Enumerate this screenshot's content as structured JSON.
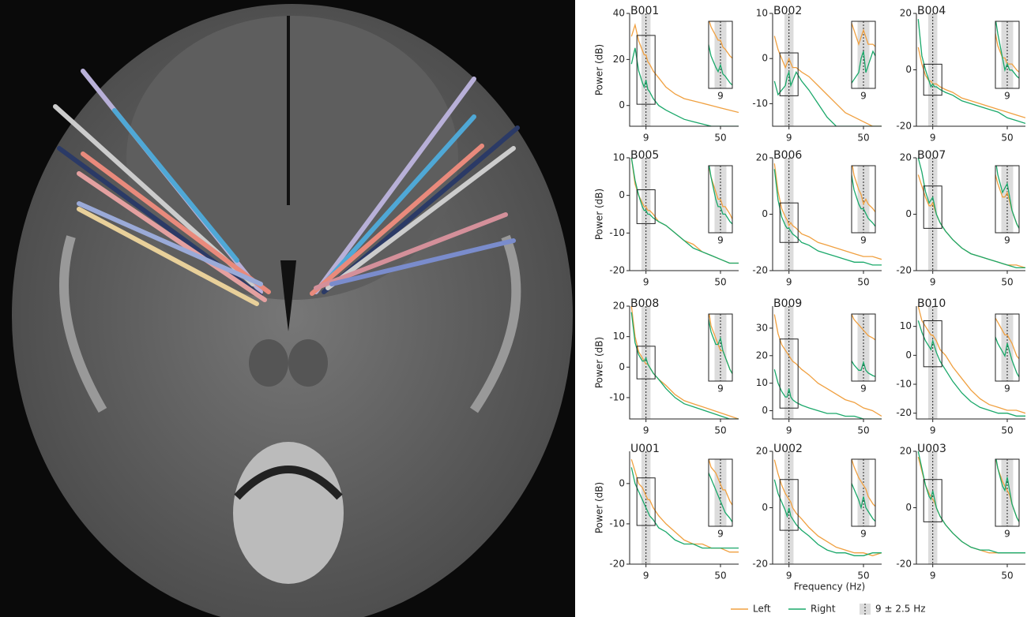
{
  "chart_data": [
    {
      "type": "line",
      "title": "B001",
      "ylabel": "Power (dB)",
      "x": [
        1,
        3,
        5,
        7,
        8,
        9,
        10,
        11,
        13,
        16,
        20,
        25,
        30,
        35,
        40,
        45,
        50,
        55,
        60
      ],
      "xlim": [
        0,
        60
      ],
      "xticks": [
        9,
        50
      ],
      "ylim": [
        -9,
        40
      ],
      "yticks": [
        0,
        20,
        40
      ],
      "series": [
        {
          "name": "Left",
          "color": "#f0a040",
          "values": [
            30,
            35,
            28,
            24,
            22,
            22,
            19,
            18,
            15,
            12,
            8,
            5,
            3,
            2,
            1,
            0,
            -1,
            -2,
            -3
          ]
        },
        {
          "name": "Right",
          "color": "#1aa86a",
          "values": [
            18,
            25,
            15,
            10,
            8,
            11,
            7,
            6,
            3,
            0,
            -2,
            -4,
            -6,
            -7,
            -8,
            -9,
            -9,
            -9,
            -9
          ]
        }
      ]
    },
    {
      "type": "line",
      "title": "B002",
      "x": [
        1,
        3,
        5,
        7,
        8,
        9,
        10,
        11,
        13,
        16,
        20,
        25,
        30,
        35,
        40,
        45,
        50,
        55,
        60
      ],
      "xlim": [
        0,
        60
      ],
      "xticks": [
        9,
        50
      ],
      "ylim": [
        -15,
        10
      ],
      "yticks": [
        -10,
        0,
        10
      ],
      "series": [
        {
          "name": "Left",
          "color": "#f0a040",
          "values": [
            5,
            2,
            0,
            -2,
            -1,
            0,
            -1,
            -2,
            -2,
            -3,
            -4,
            -6,
            -8,
            -10,
            -12,
            -13,
            -14,
            -15,
            -15
          ]
        },
        {
          "name": "Right",
          "color": "#1aa86a",
          "values": [
            -5,
            -8,
            -7,
            -6,
            -4,
            -3,
            -6,
            -5,
            -3,
            -5,
            -7,
            -10,
            -13,
            -15,
            -15,
            -15,
            -15,
            -15,
            -15
          ]
        }
      ]
    },
    {
      "type": "line",
      "title": "B004",
      "x": [
        1,
        3,
        5,
        7,
        8,
        9,
        10,
        11,
        13,
        16,
        20,
        25,
        30,
        35,
        40,
        45,
        50,
        55,
        60
      ],
      "xlim": [
        0,
        60
      ],
      "xticks": [
        9,
        50
      ],
      "ylim": [
        -20,
        20
      ],
      "yticks": [
        -20,
        0,
        20
      ],
      "series": [
        {
          "name": "Left",
          "color": "#f0a040",
          "values": [
            8,
            2,
            -2,
            -4,
            -4,
            -5,
            -5,
            -5,
            -6,
            -7,
            -8,
            -10,
            -11,
            -12,
            -13,
            -14,
            -15,
            -16,
            -17
          ]
        },
        {
          "name": "Right",
          "color": "#1aa86a",
          "values": [
            18,
            5,
            0,
            -4,
            -6,
            -5,
            -6,
            -6,
            -7,
            -8,
            -9,
            -11,
            -12,
            -13,
            -14,
            -15,
            -17,
            -18,
            -19
          ]
        }
      ]
    },
    {
      "type": "line",
      "title": "B005",
      "ylabel": "Power (dB)",
      "x": [
        1,
        3,
        5,
        7,
        8,
        9,
        10,
        11,
        13,
        16,
        20,
        25,
        30,
        35,
        40,
        45,
        50,
        55,
        60
      ],
      "xlim": [
        0,
        60
      ],
      "xticks": [
        9,
        50
      ],
      "ylim": [
        -20,
        10
      ],
      "yticks": [
        -20,
        -10,
        0,
        10
      ],
      "series": [
        {
          "name": "Left",
          "color": "#f0a040",
          "values": [
            10,
            3,
            0,
            -2,
            -3,
            -3,
            -4,
            -4,
            -5,
            -7,
            -8,
            -10,
            -12,
            -13,
            -15,
            -16,
            -17,
            -18,
            -18
          ]
        },
        {
          "name": "Right",
          "color": "#1aa86a",
          "values": [
            10,
            4,
            0,
            -3,
            -4,
            -4,
            -5,
            -5,
            -6,
            -7,
            -8,
            -10,
            -12,
            -14,
            -15,
            -16,
            -17,
            -18,
            -18
          ]
        }
      ]
    },
    {
      "type": "line",
      "title": "B006",
      "x": [
        1,
        3,
        5,
        7,
        8,
        9,
        10,
        11,
        13,
        16,
        20,
        25,
        30,
        35,
        40,
        45,
        50,
        55,
        60
      ],
      "xlim": [
        0,
        60
      ],
      "xticks": [
        9,
        50
      ],
      "ylim": [
        -20,
        20
      ],
      "yticks": [
        -20,
        0,
        20
      ],
      "series": [
        {
          "name": "Left",
          "color": "#f0a040",
          "values": [
            18,
            8,
            2,
            -1,
            -2,
            -4,
            -3,
            -4,
            -5,
            -7,
            -8,
            -10,
            -11,
            -12,
            -13,
            -14,
            -15,
            -15,
            -16
          ]
        },
        {
          "name": "Right",
          "color": "#1aa86a",
          "values": [
            16,
            5,
            -1,
            -4,
            -5,
            -5,
            -6,
            -7,
            -8,
            -10,
            -11,
            -13,
            -14,
            -15,
            -16,
            -17,
            -17,
            -18,
            -18
          ]
        }
      ]
    },
    {
      "type": "line",
      "title": "B007",
      "x": [
        1,
        3,
        5,
        7,
        8,
        9,
        10,
        11,
        13,
        16,
        20,
        25,
        30,
        35,
        40,
        45,
        50,
        55,
        60
      ],
      "xlim": [
        0,
        60
      ],
      "xticks": [
        9,
        50
      ],
      "ylim": [
        -20,
        20
      ],
      "yticks": [
        -20,
        0,
        20
      ],
      "series": [
        {
          "name": "Left",
          "color": "#f0a040",
          "values": [
            14,
            10,
            6,
            3,
            3,
            4,
            2,
            0,
            -3,
            -6,
            -9,
            -12,
            -14,
            -15,
            -16,
            -17,
            -18,
            -18,
            -19
          ]
        },
        {
          "name": "Right",
          "color": "#1aa86a",
          "values": [
            20,
            15,
            8,
            4,
            5,
            6,
            3,
            0,
            -3,
            -6,
            -9,
            -12,
            -14,
            -15,
            -16,
            -17,
            -18,
            -19,
            -19
          ]
        }
      ]
    },
    {
      "type": "line",
      "title": "B008",
      "ylabel": "Power (dB)",
      "x": [
        1,
        3,
        5,
        7,
        8,
        9,
        10,
        11,
        13,
        16,
        20,
        25,
        30,
        35,
        40,
        45,
        50,
        55,
        60
      ],
      "xlim": [
        0,
        60
      ],
      "xticks": [
        9,
        50
      ],
      "ylim": [
        -17,
        20
      ],
      "yticks": [
        -10,
        0,
        10,
        20
      ],
      "series": [
        {
          "name": "Left",
          "color": "#f0a040",
          "values": [
            20,
            10,
            5,
            3,
            2,
            1,
            1,
            0,
            -2,
            -4,
            -6,
            -9,
            -11,
            -12,
            -13,
            -14,
            -15,
            -16,
            -17
          ]
        },
        {
          "name": "Right",
          "color": "#1aa86a",
          "values": [
            18,
            8,
            4,
            2,
            2,
            3,
            1,
            0,
            -2,
            -4,
            -7,
            -10,
            -12,
            -13,
            -14,
            -15,
            -16,
            -17,
            -17
          ]
        }
      ]
    },
    {
      "type": "line",
      "title": "B009",
      "x": [
        1,
        3,
        5,
        7,
        8,
        9,
        10,
        11,
        13,
        16,
        20,
        25,
        30,
        35,
        40,
        45,
        50,
        55,
        60
      ],
      "xlim": [
        0,
        60
      ],
      "xticks": [
        9,
        50
      ],
      "ylim": [
        -3,
        38
      ],
      "yticks": [
        0,
        10,
        20,
        30
      ],
      "series": [
        {
          "name": "Left",
          "color": "#f0a040",
          "values": [
            35,
            28,
            24,
            22,
            21,
            20,
            19,
            18,
            17,
            15,
            13,
            10,
            8,
            6,
            4,
            3,
            1,
            0,
            -2
          ]
        },
        {
          "name": "Right",
          "color": "#1aa86a",
          "values": [
            15,
            10,
            7,
            5,
            5,
            8,
            5,
            4,
            3,
            2,
            1,
            0,
            -1,
            -1,
            -2,
            -2,
            -3,
            -3,
            -3
          ]
        }
      ]
    },
    {
      "type": "line",
      "title": "B010",
      "x": [
        1,
        3,
        5,
        7,
        8,
        9,
        10,
        11,
        13,
        16,
        20,
        25,
        30,
        35,
        40,
        45,
        50,
        55,
        60
      ],
      "xlim": [
        0,
        60
      ],
      "xticks": [
        9,
        50
      ],
      "ylim": [
        -22,
        17
      ],
      "yticks": [
        -20,
        -10,
        0,
        10
      ],
      "series": [
        {
          "name": "Left",
          "color": "#f0a040",
          "values": [
            17,
            12,
            10,
            8,
            7,
            7,
            6,
            5,
            2,
            0,
            -4,
            -8,
            -12,
            -15,
            -17,
            -18,
            -19,
            -19,
            -20
          ]
        },
        {
          "name": "Right",
          "color": "#1aa86a",
          "values": [
            12,
            8,
            5,
            3,
            2,
            5,
            3,
            1,
            -2,
            -5,
            -9,
            -13,
            -16,
            -18,
            -19,
            -20,
            -20,
            -21,
            -21
          ]
        }
      ]
    },
    {
      "type": "line",
      "title": "U001",
      "ylabel": "Power (dB)",
      "x": [
        1,
        3,
        5,
        7,
        8,
        9,
        10,
        11,
        13,
        16,
        20,
        25,
        30,
        35,
        40,
        45,
        50,
        55,
        60
      ],
      "xlim": [
        0,
        60
      ],
      "xticks": [
        9,
        50
      ],
      "ylim": [
        -20,
        8
      ],
      "yticks": [
        -20,
        -10,
        0
      ],
      "series": [
        {
          "name": "Left",
          "color": "#f0a040",
          "values": [
            6,
            3,
            0,
            -1,
            -2,
            -3,
            -4,
            -4,
            -6,
            -8,
            -10,
            -12,
            -14,
            -15,
            -15,
            -16,
            -16,
            -17,
            -17
          ]
        },
        {
          "name": "Right",
          "color": "#1aa86a",
          "values": [
            4,
            0,
            -2,
            -4,
            -5,
            -6,
            -7,
            -8,
            -9,
            -11,
            -12,
            -14,
            -15,
            -15,
            -16,
            -16,
            -16,
            -16,
            -16
          ]
        }
      ]
    },
    {
      "type": "line",
      "title": "U002",
      "x": [
        1,
        3,
        5,
        7,
        8,
        9,
        10,
        11,
        13,
        16,
        20,
        25,
        30,
        35,
        40,
        45,
        50,
        55,
        60
      ],
      "xlim": [
        0,
        60
      ],
      "xticks": [
        9,
        50
      ],
      "ylim": [
        -20,
        20
      ],
      "yticks": [
        -20,
        0,
        20
      ],
      "series": [
        {
          "name": "Left",
          "color": "#f0a040",
          "values": [
            17,
            12,
            8,
            5,
            4,
            3,
            2,
            0,
            -2,
            -4,
            -7,
            -10,
            -12,
            -14,
            -15,
            -16,
            -16,
            -17,
            -16
          ]
        },
        {
          "name": "Right",
          "color": "#1aa86a",
          "values": [
            10,
            5,
            2,
            -1,
            -3,
            0,
            -3,
            -4,
            -6,
            -8,
            -10,
            -13,
            -15,
            -16,
            -16,
            -17,
            -17,
            -16,
            -16
          ]
        }
      ]
    },
    {
      "type": "line",
      "title": "U003",
      "x": [
        1,
        3,
        5,
        7,
        8,
        9,
        10,
        11,
        13,
        16,
        20,
        25,
        30,
        35,
        40,
        45,
        50,
        55,
        60
      ],
      "xlim": [
        0,
        60
      ],
      "xticks": [
        9,
        50
      ],
      "ylim": [
        -20,
        20
      ],
      "yticks": [
        -20,
        0,
        20
      ],
      "series": [
        {
          "name": "Left",
          "color": "#f0a040",
          "values": [
            18,
            13,
            8,
            5,
            4,
            3,
            2,
            0,
            -3,
            -6,
            -9,
            -12,
            -14,
            -15,
            -16,
            -16,
            -16,
            -16,
            -16
          ]
        },
        {
          "name": "Right",
          "color": "#1aa86a",
          "values": [
            20,
            14,
            8,
            4,
            3,
            6,
            3,
            0,
            -3,
            -6,
            -9,
            -12,
            -14,
            -15,
            -15,
            -16,
            -16,
            -16,
            -16
          ]
        }
      ]
    }
  ],
  "xlabel": "Frequency (Hz)",
  "band": {
    "center": 9,
    "halfwidth": 2.5,
    "label": "9 ± 2.5 Hz"
  }
}
